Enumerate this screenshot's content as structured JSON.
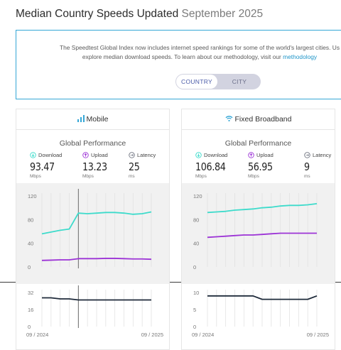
{
  "page": {
    "title": "Median Country Speeds Updated",
    "title_date": "September 2025"
  },
  "info": {
    "line1": "The Speedtest Global Index now includes internet speed rankings for some of the world's largest cities. Us",
    "line2_prefix": "explore median download speeds. To learn about our methodology, visit our",
    "line2_link": "methodology"
  },
  "toggle": {
    "country": "COUNTRY",
    "city": "CITY",
    "selected": "COUNTRY"
  },
  "colors": {
    "download": "#3ddbcb",
    "upload": "#9c33d6",
    "latency_icon": "#6f7480",
    "accent": "#35a7d6",
    "line_dark": "#1e2a3a"
  },
  "cards": [
    {
      "title": "Mobile",
      "icon": "signal-bars-icon",
      "perf_title": "Global Performance",
      "metrics": [
        {
          "label": "Download",
          "value": "93.47",
          "unit": "Mbps"
        },
        {
          "label": "Upload",
          "value": "13.23",
          "unit": "Mbps"
        },
        {
          "label": "Latency",
          "value": "25",
          "unit": "ms"
        }
      ],
      "x_start": "09 / 2024",
      "x_end": "09 / 2025"
    },
    {
      "title": "Fixed Broadband",
      "icon": "wifi-icon",
      "perf_title": "Global Performance",
      "metrics": [
        {
          "label": "Download",
          "value": "106.84",
          "unit": "Mbps"
        },
        {
          "label": "Upload",
          "value": "56.95",
          "unit": "Mbps"
        },
        {
          "label": "Latency",
          "value": "9",
          "unit": "ms"
        }
      ],
      "x_start": "09 / 2024",
      "x_end": "09 / 2025"
    }
  ],
  "chart_data": [
    {
      "type": "line",
      "panel": "Mobile",
      "x": [
        "09/2024",
        "10/2024",
        "11/2024",
        "12/2024",
        "01/2025",
        "02/2025",
        "03/2025",
        "04/2025",
        "05/2025",
        "06/2025",
        "07/2025",
        "08/2025",
        "09/2025"
      ],
      "ylim": [
        0,
        120
      ],
      "yticks": [
        0,
        40,
        80,
        120
      ],
      "series": [
        {
          "key": "download",
          "values": [
            56,
            59,
            62,
            64,
            91,
            90,
            91,
            92,
            92,
            91,
            89,
            90,
            93
          ]
        },
        {
          "key": "upload",
          "values": [
            11,
            11.5,
            12,
            12,
            14,
            14,
            14,
            14.5,
            14.5,
            14,
            13.5,
            13.5,
            13
          ]
        }
      ],
      "marker_index": 4
    },
    {
      "type": "line",
      "panel": "Mobile",
      "x": [
        "09/2024",
        "10/2024",
        "11/2024",
        "12/2024",
        "01/2025",
        "02/2025",
        "03/2025",
        "04/2025",
        "05/2025",
        "06/2025",
        "07/2025",
        "08/2025",
        "09/2025"
      ],
      "ylim": [
        0,
        32
      ],
      "yticks": [
        0,
        16,
        32
      ],
      "series": [
        {
          "key": "latency",
          "values": [
            27,
            27,
            26,
            26,
            25,
            25,
            25,
            25,
            25,
            25,
            25,
            25,
            25
          ]
        }
      ],
      "marker_index": 4
    },
    {
      "type": "line",
      "panel": "Fixed Broadband",
      "x": [
        "09/2024",
        "10/2024",
        "11/2024",
        "12/2024",
        "01/2025",
        "02/2025",
        "03/2025",
        "04/2025",
        "05/2025",
        "06/2025",
        "07/2025",
        "08/2025",
        "09/2025"
      ],
      "ylim": [
        0,
        120
      ],
      "yticks": [
        0,
        40,
        80,
        120
      ],
      "series": [
        {
          "key": "download",
          "values": [
            92,
            93,
            94,
            96,
            97,
            98,
            100,
            101,
            103,
            104,
            104,
            105,
            107
          ]
        },
        {
          "key": "upload",
          "values": [
            50,
            51,
            52,
            53,
            54,
            54,
            55,
            56,
            57,
            57,
            57,
            57,
            57
          ]
        }
      ]
    },
    {
      "type": "line",
      "panel": "Fixed Broadband",
      "x": [
        "09/2024",
        "10/2024",
        "11/2024",
        "12/2024",
        "01/2025",
        "02/2025",
        "03/2025",
        "04/2025",
        "05/2025",
        "06/2025",
        "07/2025",
        "08/2025",
        "09/2025"
      ],
      "ylim": [
        0,
        10
      ],
      "yticks": [
        0,
        5,
        10
      ],
      "series": [
        {
          "key": "latency",
          "values": [
            9,
            9,
            9,
            9,
            9,
            9,
            8,
            8,
            8,
            8,
            8,
            8,
            9
          ]
        }
      ]
    }
  ]
}
